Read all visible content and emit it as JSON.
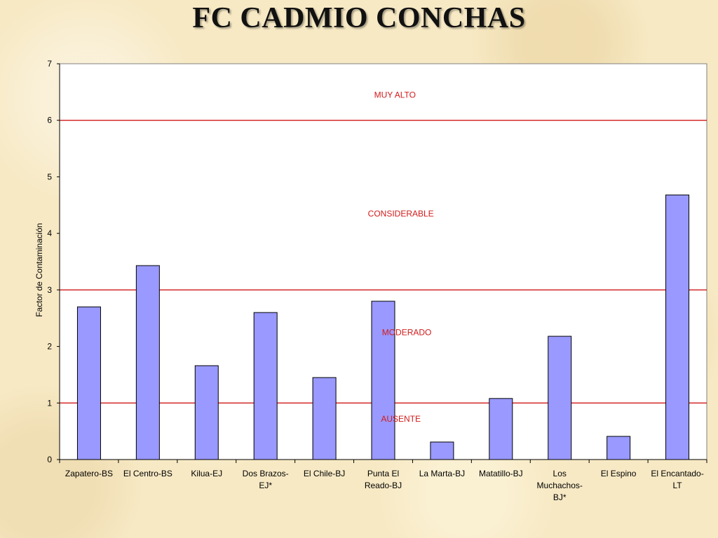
{
  "slide": {
    "title": "FC CADMIO CONCHAS"
  },
  "colors": {
    "bar_fill": "#9999ff",
    "bar_stroke": "#000000",
    "threshold_line": "#cc0000",
    "zone_label": "#d21a1a",
    "plot_bg": "#ffffff"
  },
  "chart_data": {
    "type": "bar",
    "title": "",
    "xlabel": "",
    "ylabel": "Factor de Contaminación",
    "ylim": [
      0,
      7
    ],
    "yticks": [
      0,
      1,
      2,
      3,
      4,
      5,
      6,
      7
    ],
    "grid": false,
    "categories": [
      [
        "Zapatero-BS"
      ],
      [
        "El Centro-BS"
      ],
      [
        "Kilua-EJ"
      ],
      [
        "Dos Brazos-",
        "EJ*"
      ],
      [
        "El Chile-BJ"
      ],
      [
        "Punta El",
        "Reado-BJ"
      ],
      [
        "La Marta-BJ"
      ],
      [
        "Matatillo-BJ"
      ],
      [
        "Los",
        "Muchachos-",
        "BJ*"
      ],
      [
        "El Espino"
      ],
      [
        "El Encantado-",
        "LT"
      ]
    ],
    "values": [
      2.7,
      3.43,
      1.66,
      2.6,
      1.45,
      2.8,
      0.31,
      1.08,
      2.18,
      0.41,
      4.68
    ],
    "thresholds": [
      1,
      3,
      6
    ],
    "zone_labels": [
      {
        "text": "MUY ALTO",
        "y": 6.45,
        "x_category": 5.7
      },
      {
        "text": "CONSIDERABLE",
        "y": 4.35,
        "x_category": 5.8
      },
      {
        "text": "MODERADO",
        "y": 2.25,
        "x_category": 5.9
      },
      {
        "text": "AUSENTE",
        "y": 0.72,
        "x_category": 5.8
      }
    ]
  }
}
